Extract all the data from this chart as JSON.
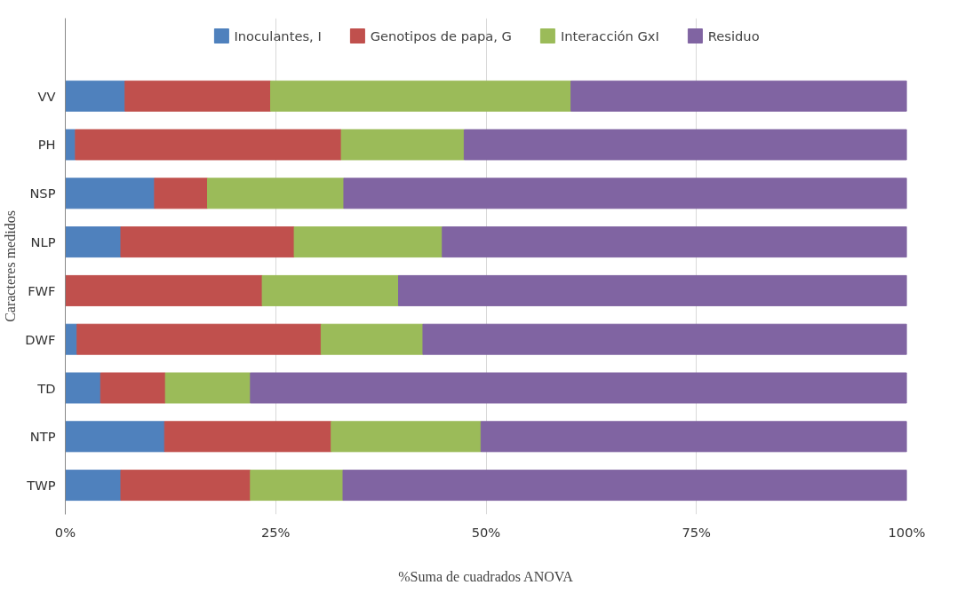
{
  "chart_data": {
    "type": "bar",
    "orientation": "horizontal",
    "stacked": true,
    "xlabel": "%Suma de cuadrados ANOVA",
    "ylabel": "Caracteres medidos",
    "categories": [
      "VV",
      "PH",
      "NSP",
      "NLP",
      "FWF",
      "DWF",
      "TD",
      "NTP",
      "TWP"
    ],
    "series": [
      {
        "name": "Inoculantes, I",
        "color": "#4f81bd",
        "values": [
          7.1,
          1.2,
          10.6,
          6.6,
          null,
          1.4,
          4.2,
          11.8,
          6.6
        ]
      },
      {
        "name": "Genotipos de papa, G",
        "color": "#c0504d",
        "values": [
          17.3,
          31.6,
          6.3,
          20.6,
          23.4,
          29.0,
          7.7,
          19.8,
          15.4
        ]
      },
      {
        "name": "Interacción GxI",
        "color": "#9bbb59",
        "values": [
          35.7,
          14.6,
          16.2,
          17.6,
          16.2,
          12.1,
          10.1,
          17.8,
          11.0
        ]
      },
      {
        "name": "Residuo",
        "color": "#8064a2",
        "values": [
          39.9,
          52.6,
          66.9,
          55.2,
          60.4,
          57.5,
          78.0,
          50.6,
          67.0
        ]
      }
    ],
    "xlim": [
      0,
      100
    ],
    "xticks": [
      {
        "value": 0,
        "label": "0%"
      },
      {
        "value": 25,
        "label": "25%"
      },
      {
        "value": 50,
        "label": "50%"
      },
      {
        "value": 75,
        "label": "75%"
      },
      {
        "value": 100,
        "label": "100%"
      }
    ],
    "grid": "x",
    "legend": "top"
  }
}
